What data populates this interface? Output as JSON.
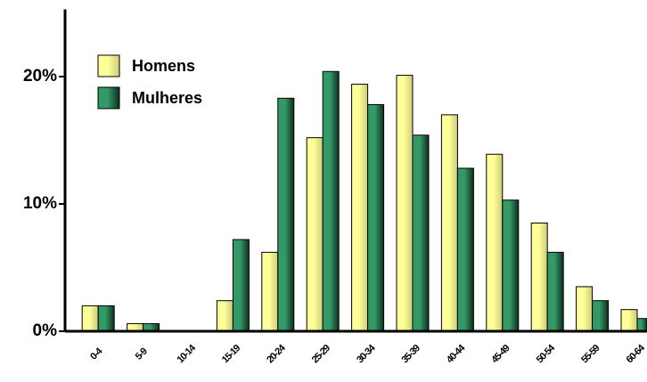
{
  "chart_data": {
    "type": "bar",
    "categories": [
      "0-4",
      "5-9",
      "10-14",
      "15-19",
      "20-24",
      "25-29",
      "30-34",
      "35-39",
      "40-44",
      "45-49",
      "50-54",
      "55-59",
      "60-64"
    ],
    "series": [
      {
        "name": "Homens",
        "color": "#ffff99",
        "values": [
          2.0,
          0.6,
          0,
          2.4,
          6.2,
          15.2,
          19.4,
          20.1,
          17.0,
          13.9,
          8.5,
          3.5,
          1.7
        ]
      },
      {
        "name": "Mulheres",
        "color": "#339966",
        "values": [
          2.0,
          0.6,
          0,
          7.2,
          18.3,
          20.4,
          17.8,
          15.4,
          12.8,
          10.3,
          6.2,
          2.4,
          1.0
        ]
      }
    ],
    "ylim": [
      0,
      25
    ],
    "yticks": [
      {
        "value": 0,
        "label": "0%"
      },
      {
        "value": 10,
        "label": "10%"
      },
      {
        "value": 20,
        "label": "20%"
      }
    ]
  }
}
